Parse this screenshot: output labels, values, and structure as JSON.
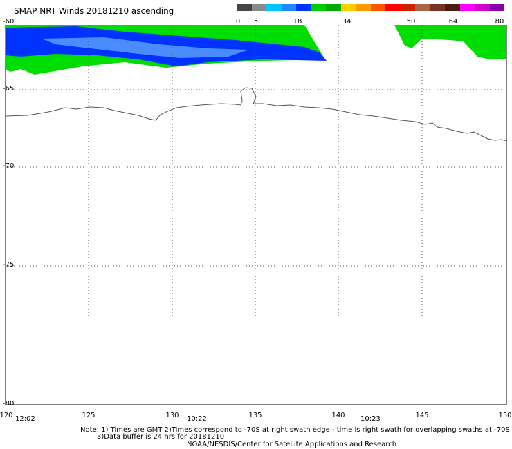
{
  "title": "SMAP NRT Winds 20181210 ascending",
  "colorbar": {
    "ticks": [
      "0",
      "5",
      "18",
      "34",
      "50",
      "64",
      "80"
    ],
    "colors": [
      "#444444",
      "#8a8a8a",
      "#00c8ff",
      "#1e88ff",
      "#0033ff",
      "#00d000",
      "#00aa00",
      "#ffd000",
      "#ff9900",
      "#ff5500",
      "#ff0000",
      "#cc2200",
      "#aa6644",
      "#7a3322",
      "#4a1a10",
      "#ff00ff",
      "#cc00cc",
      "#8800aa"
    ]
  },
  "map": {
    "lat_labels": [
      "-60",
      "-65",
      "-70",
      "-75",
      "-80"
    ],
    "lon_labels": [
      "120",
      "125",
      "130",
      "135",
      "140",
      "145",
      "150"
    ],
    "time_labels": [
      "12:02",
      "10:22",
      "10:23"
    ],
    "colors": {
      "high_wind": "#00dd00",
      "medium_wind": "#0033ff",
      "low_wind": "#4a8cff",
      "coast": "#555555"
    }
  },
  "notes": {
    "line1": "Note: 1) Times are GMT 2)Times correspond to -70S at right swath edge - time is right swath for overlapping swaths at -70S",
    "line2": "3)Data buffer is 24 hrs for 20181210",
    "line3": "NOAA/NESDIS/Center for Satellite Applications and Research"
  }
}
